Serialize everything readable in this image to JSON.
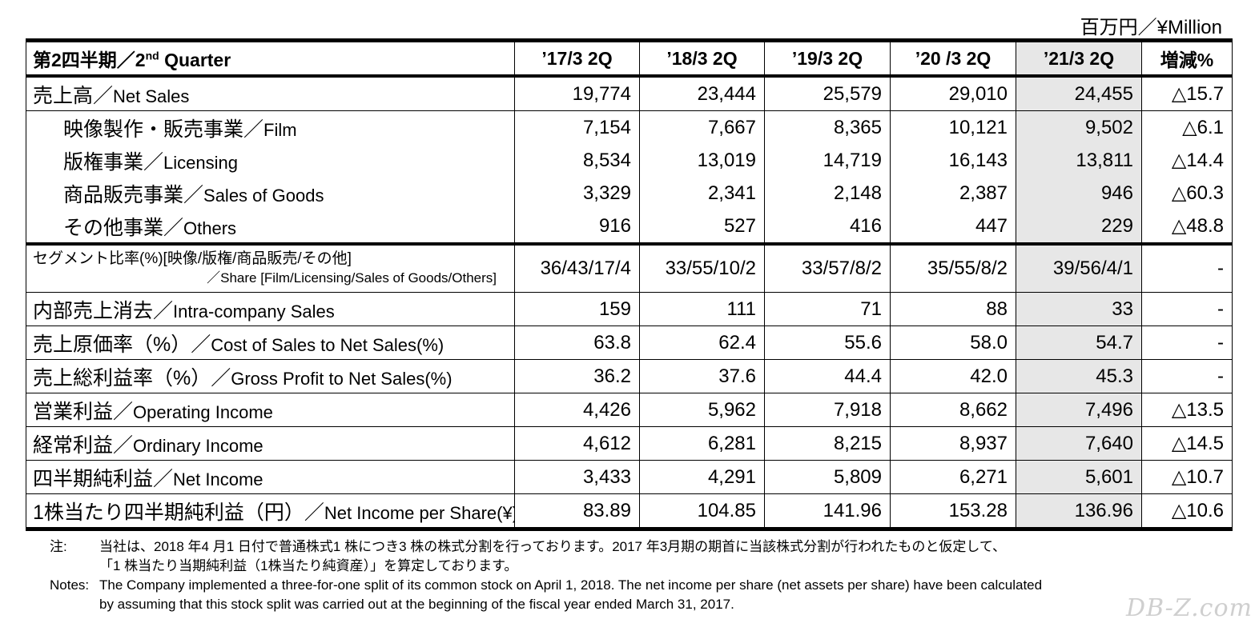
{
  "unit_label": "百万円／¥Million",
  "table": {
    "header": {
      "label": "第2四半期／2nd Quarter",
      "label_main": "第2四半期／2",
      "label_sup": "nd",
      "label_tail": " Quarter",
      "periods": [
        "’17/3 2Q",
        "’18/3 2Q",
        "’19/3 2Q",
        "’20 /3 2Q",
        "’21/3 2Q"
      ],
      "change": "増減%"
    },
    "rows": {
      "net_sales": {
        "jp": "売上高／",
        "en": "Net Sales",
        "values": [
          "19,774",
          "23,444",
          "25,579",
          "29,010",
          "24,455"
        ],
        "change": "△15.7"
      },
      "film": {
        "jp": "映像製作・販売事業／",
        "en": "Film",
        "values": [
          "7,154",
          "7,667",
          "8,365",
          "10,121",
          "9,502"
        ],
        "change": "△6.1"
      },
      "licensing": {
        "jp": "版権事業／",
        "en": "Licensing",
        "values": [
          "8,534",
          "13,019",
          "14,719",
          "16,143",
          "13,811"
        ],
        "change": "△14.4"
      },
      "goods": {
        "jp": "商品販売事業／",
        "en": "Sales of Goods",
        "values": [
          "3,329",
          "2,341",
          "2,148",
          "2,387",
          "946"
        ],
        "change": "△60.3"
      },
      "others": {
        "jp": "その他事業／",
        "en": "Others",
        "values": [
          "916",
          "527",
          "416",
          "447",
          "229"
        ],
        "change": "△48.8"
      },
      "segment": {
        "line1": "セグメント比率(%)[映像/版権/商品販売/その他]",
        "line2": "／Share [Film/Licensing/Sales of Goods/Others]",
        "values": [
          "36/43/17/4",
          "33/55/10/2",
          "33/57/8/2",
          "35/55/8/2",
          "39/56/4/1"
        ],
        "change": "-"
      },
      "intra": {
        "jp": "内部売上消去／",
        "en": "Intra-company Sales",
        "values": [
          "159",
          "111",
          "71",
          "88",
          "33"
        ],
        "change": "-"
      },
      "cost": {
        "jp": "売上原価率（%）／",
        "en": "Cost of Sales to Net Sales(%)",
        "values": [
          "63.8",
          "62.4",
          "55.6",
          "58.0",
          "54.7"
        ],
        "change": "-"
      },
      "gross": {
        "jp": "売上総利益率（%）／",
        "en": "Gross Profit to Net Sales(%)",
        "values": [
          "36.2",
          "37.6",
          "44.4",
          "42.0",
          "45.3"
        ],
        "change": "-"
      },
      "operating": {
        "jp": "営業利益／",
        "en": "Operating Income",
        "values": [
          "4,426",
          "5,962",
          "7,918",
          "8,662",
          "7,496"
        ],
        "change": "△13.5"
      },
      "ordinary": {
        "jp": "経常利益／",
        "en": "Ordinary Income",
        "values": [
          "4,612",
          "6,281",
          "8,215",
          "8,937",
          "7,640"
        ],
        "change": "△14.5"
      },
      "net_income": {
        "jp": "四半期純利益／",
        "en": "Net Income",
        "values": [
          "3,433",
          "4,291",
          "5,809",
          "6,271",
          "5,601"
        ],
        "change": "△10.7"
      },
      "eps": {
        "jp": "1株当たり四半期純利益（円）／",
        "en": "Net Income per Share(¥)",
        "values": [
          "83.89",
          "104.85",
          "141.96",
          "153.28",
          "136.96"
        ],
        "change": "△10.6"
      }
    }
  },
  "notes": {
    "jp_tag": "注:",
    "jp_line1": "当社は、2018 年4 月1 日付で普通株式1 株につき3 株の株式分割を行っております。2017 年3月期の期首に当該株式分割が行われたものと仮定して、",
    "jp_line2": "「1 株当たり当期純利益（1株当たり純資産）」を算定しております。",
    "en_tag": "Notes:",
    "en_line1": "The Company implemented a three-for-one split of its common stock  on April 1, 2018. The net income per share (net assets per share) have been  calculated",
    "en_line2": "by assuming that this stock split was carried out at the beginning of the fiscal year ended March 31, 2017."
  },
  "watermark": "DB-Z.com"
}
